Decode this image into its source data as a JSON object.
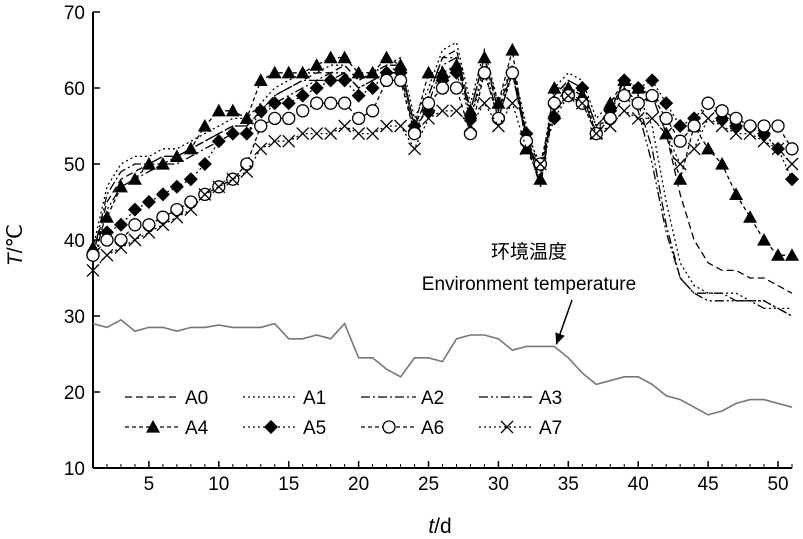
{
  "chart_data": {
    "type": "line",
    "xlabel_var": "t",
    "xlabel_unit": "/d",
    "ylabel_var": "T",
    "ylabel_unit": "/℃",
    "xlim": [
      1,
      51
    ],
    "ylim": [
      10,
      70
    ],
    "xticks": [
      5,
      10,
      15,
      20,
      25,
      30,
      35,
      40,
      45,
      50
    ],
    "yticks": [
      10,
      20,
      30,
      40,
      50,
      60,
      70
    ],
    "grid": false,
    "legend_position": "lower-left",
    "annotation": {
      "line1": "环境温度",
      "line2": "Environment temperature",
      "arrow_target": {
        "x": 34,
        "y": 26
      }
    },
    "series": [
      {
        "name": "A0",
        "color": "#000000",
        "dash": "7,4",
        "marker": "none",
        "x": [
          1,
          2,
          3,
          4,
          5,
          6,
          7,
          8,
          9,
          10,
          11,
          12,
          13,
          14,
          15,
          16,
          17,
          18,
          19,
          20,
          21,
          22,
          23,
          24,
          25,
          26,
          27,
          28,
          29,
          30,
          31,
          32,
          33,
          34,
          35,
          36,
          37,
          38,
          39,
          40,
          41,
          42,
          43,
          44,
          45,
          46,
          47,
          48,
          49,
          50,
          51
        ],
        "y": [
          38,
          45,
          48,
          49,
          50,
          51,
          51,
          52,
          53,
          54,
          55,
          55,
          57,
          59,
          60,
          61,
          62,
          62,
          63,
          61,
          62,
          63,
          63,
          55,
          59,
          64,
          65,
          57,
          64,
          57,
          63,
          54,
          48,
          59,
          61,
          60,
          55,
          57,
          61,
          60,
          59,
          54,
          46,
          40,
          37,
          36,
          36,
          35,
          35,
          34,
          33
        ]
      },
      {
        "name": "A1",
        "color": "#000000",
        "dash": "2,3",
        "marker": "none",
        "x": [
          1,
          2,
          3,
          4,
          5,
          6,
          7,
          8,
          9,
          10,
          11,
          12,
          13,
          14,
          15,
          16,
          17,
          18,
          19,
          20,
          21,
          22,
          23,
          24,
          25,
          26,
          27,
          28,
          29,
          30,
          31,
          32,
          33,
          34,
          35,
          36,
          37,
          38,
          39,
          40,
          41,
          42,
          43,
          44,
          45,
          46,
          47,
          48,
          49,
          50,
          51
        ],
        "y": [
          39,
          47,
          50,
          51,
          51,
          52,
          52,
          53,
          54,
          55,
          56,
          56,
          58,
          60,
          61,
          62,
          62,
          63,
          63,
          61,
          62,
          63,
          64,
          56,
          60,
          65,
          66,
          58,
          65,
          58,
          63,
          55,
          49,
          60,
          62,
          61,
          56,
          58,
          60,
          59,
          55,
          45,
          37,
          34,
          33,
          33,
          33,
          32,
          32,
          31,
          31
        ]
      },
      {
        "name": "A2",
        "color": "#000000",
        "dash": "9,3,2,3",
        "marker": "none",
        "x": [
          1,
          2,
          3,
          4,
          5,
          6,
          7,
          8,
          9,
          10,
          11,
          12,
          13,
          14,
          15,
          16,
          17,
          18,
          19,
          20,
          21,
          22,
          23,
          24,
          25,
          26,
          27,
          28,
          29,
          30,
          31,
          32,
          33,
          34,
          35,
          36,
          37,
          38,
          39,
          40,
          41,
          42,
          43,
          44,
          45,
          46,
          47,
          48,
          49,
          50,
          51
        ],
        "y": [
          38,
          46,
          49,
          50,
          50,
          51,
          51,
          52,
          53,
          54,
          55,
          55,
          57,
          59,
          60,
          61,
          61,
          62,
          62,
          60,
          61,
          62,
          63,
          55,
          59,
          64,
          64,
          57,
          64,
          57,
          62,
          54,
          47,
          59,
          61,
          60,
          55,
          57,
          60,
          58,
          52,
          42,
          35,
          33,
          33,
          33,
          32,
          32,
          32,
          31,
          30
        ]
      },
      {
        "name": "A3",
        "color": "#000000",
        "dash": "9,3,2,3,2,3",
        "marker": "none",
        "x": [
          1,
          2,
          3,
          4,
          5,
          6,
          7,
          8,
          9,
          10,
          11,
          12,
          13,
          14,
          15,
          16,
          17,
          18,
          19,
          20,
          21,
          22,
          23,
          24,
          25,
          26,
          27,
          28,
          29,
          30,
          31,
          32,
          33,
          34,
          35,
          36,
          37,
          38,
          39,
          40,
          41,
          42,
          43,
          44,
          45,
          46,
          47,
          48,
          49,
          50,
          51
        ],
        "y": [
          37,
          44,
          47,
          48,
          49,
          50,
          50,
          51,
          52,
          53,
          54,
          54,
          56,
          58,
          59,
          60,
          61,
          61,
          62,
          60,
          61,
          62,
          62,
          54,
          58,
          63,
          64,
          56,
          63,
          56,
          62,
          53,
          47,
          58,
          60,
          59,
          54,
          56,
          59,
          57,
          50,
          41,
          35,
          33,
          32,
          32,
          32,
          32,
          31,
          31,
          30
        ]
      },
      {
        "name": "A4",
        "color": "#000000",
        "dash": "4,3",
        "marker": "triangle",
        "x": [
          1,
          2,
          3,
          4,
          5,
          6,
          7,
          8,
          9,
          10,
          11,
          12,
          13,
          14,
          15,
          16,
          17,
          18,
          19,
          20,
          21,
          22,
          23,
          24,
          25,
          26,
          27,
          28,
          29,
          30,
          31,
          32,
          33,
          34,
          35,
          36,
          37,
          38,
          39,
          40,
          41,
          42,
          43,
          44,
          45,
          46,
          47,
          48,
          49,
          50,
          51
        ],
        "y": [
          39,
          43,
          47,
          48,
          50,
          50,
          51,
          52,
          55,
          57,
          57,
          56,
          61,
          62,
          62,
          62,
          63,
          64,
          64,
          62,
          62,
          64,
          63,
          55,
          62,
          62,
          63,
          57,
          64,
          58,
          65,
          52,
          48,
          60,
          60,
          59,
          54,
          58,
          61,
          60,
          59,
          54,
          48,
          55,
          52,
          50,
          46,
          43,
          40,
          38,
          38
        ]
      },
      {
        "name": "A5",
        "color": "#000000",
        "dash": "2,3",
        "marker": "diamond",
        "x": [
          1,
          2,
          3,
          4,
          5,
          6,
          7,
          8,
          9,
          10,
          11,
          12,
          13,
          14,
          15,
          16,
          17,
          18,
          19,
          20,
          21,
          22,
          23,
          24,
          25,
          26,
          27,
          28,
          29,
          30,
          31,
          32,
          33,
          34,
          35,
          36,
          37,
          38,
          39,
          40,
          41,
          42,
          43,
          44,
          45,
          46,
          47,
          48,
          49,
          50,
          51
        ],
        "y": [
          38,
          41,
          42,
          44,
          45,
          46,
          47,
          48,
          50,
          53,
          54,
          54,
          57,
          58,
          58,
          59,
          60,
          61,
          61,
          59,
          60,
          62,
          62,
          55,
          57,
          61,
          62,
          56,
          62,
          56,
          62,
          54,
          50,
          56,
          59,
          60,
          54,
          57,
          61,
          60,
          61,
          58,
          55,
          56,
          58,
          56,
          55,
          55,
          54,
          52,
          48
        ]
      },
      {
        "name": "A6",
        "color": "#000000",
        "dash": "4,3",
        "marker": "circle",
        "x": [
          1,
          2,
          3,
          4,
          5,
          6,
          7,
          8,
          9,
          10,
          11,
          12,
          13,
          14,
          15,
          16,
          17,
          18,
          19,
          20,
          21,
          22,
          23,
          24,
          25,
          26,
          27,
          28,
          29,
          30,
          31,
          32,
          33,
          34,
          35,
          36,
          37,
          38,
          39,
          40,
          41,
          42,
          43,
          44,
          45,
          46,
          47,
          48,
          49,
          50,
          51
        ],
        "y": [
          38,
          40,
          40,
          42,
          42,
          43,
          44,
          45,
          46,
          47,
          48,
          50,
          55,
          56,
          56,
          57,
          58,
          58,
          58,
          56,
          57,
          61,
          61,
          54,
          58,
          60,
          60,
          54,
          62,
          56,
          62,
          53,
          50,
          58,
          59,
          58,
          54,
          56,
          59,
          58,
          59,
          56,
          53,
          55,
          58,
          57,
          56,
          55,
          55,
          55,
          52
        ]
      },
      {
        "name": "A7",
        "color": "#000000",
        "dash": "2,3",
        "marker": "x",
        "x": [
          1,
          2,
          3,
          4,
          5,
          6,
          7,
          8,
          9,
          10,
          11,
          12,
          13,
          14,
          15,
          16,
          17,
          18,
          19,
          20,
          21,
          22,
          23,
          24,
          25,
          26,
          27,
          28,
          29,
          30,
          31,
          32,
          33,
          34,
          35,
          36,
          37,
          38,
          39,
          40,
          41,
          42,
          43,
          44,
          45,
          46,
          47,
          48,
          49,
          50,
          51
        ],
        "y": [
          36,
          38,
          39,
          40,
          41,
          42,
          43,
          44,
          46,
          47,
          48,
          49,
          52,
          53,
          53,
          54,
          54,
          54,
          55,
          54,
          54,
          55,
          55,
          52,
          56,
          57,
          57,
          55,
          58,
          55,
          58,
          52,
          50,
          57,
          59,
          58,
          54,
          55,
          57,
          56,
          56,
          54,
          50,
          52,
          56,
          55,
          54,
          54,
          53,
          52,
          50
        ]
      },
      {
        "name": "Environment temperature",
        "color": "#777777",
        "dash": "",
        "marker": "none",
        "x": [
          1,
          2,
          3,
          4,
          5,
          6,
          7,
          8,
          9,
          10,
          11,
          12,
          13,
          14,
          15,
          16,
          17,
          18,
          19,
          20,
          21,
          22,
          23,
          24,
          25,
          26,
          27,
          28,
          29,
          30,
          31,
          32,
          33,
          34,
          35,
          36,
          37,
          38,
          39,
          40,
          41,
          42,
          43,
          44,
          45,
          46,
          47,
          48,
          49,
          50,
          51
        ],
        "y": [
          29,
          28.5,
          29.5,
          28,
          28.5,
          28.5,
          28,
          28.5,
          28.5,
          28.8,
          28.5,
          28.5,
          28.5,
          29,
          27,
          27,
          27.5,
          27,
          29,
          24.5,
          24.5,
          23,
          22,
          24.5,
          24.5,
          24,
          27,
          27.5,
          27.5,
          27,
          25.5,
          26,
          26,
          26,
          24.5,
          22.5,
          21,
          21.5,
          22,
          22,
          21,
          19.5,
          19,
          18,
          17,
          17.5,
          18.5,
          19,
          19,
          18.5,
          18
        ]
      }
    ]
  }
}
